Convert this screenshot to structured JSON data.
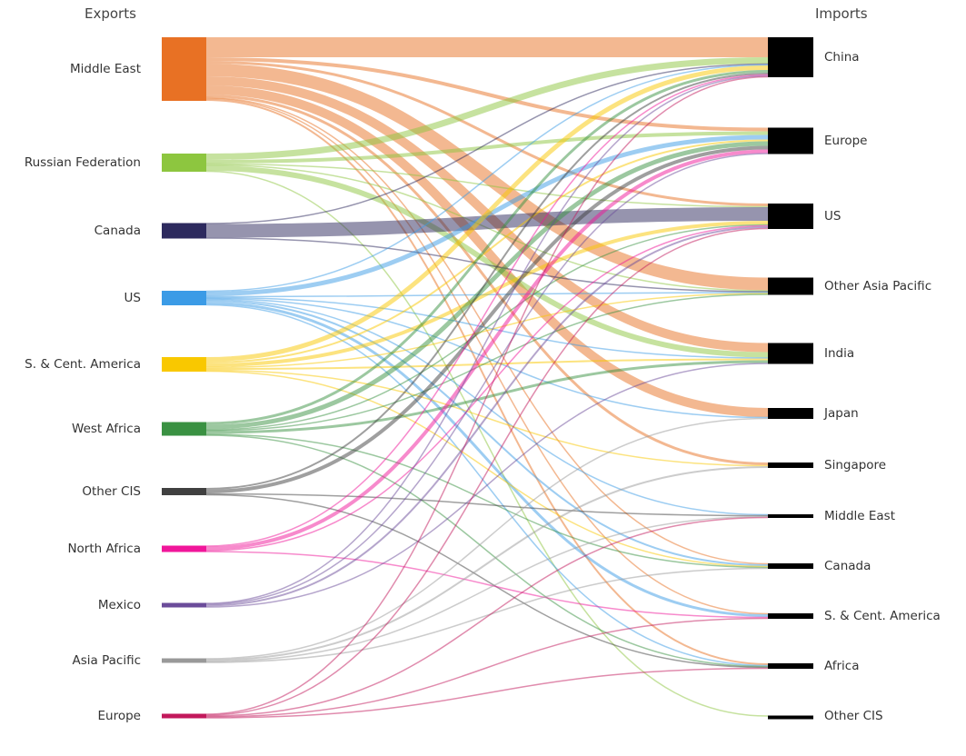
{
  "headers": {
    "left": "Exports",
    "right": "Imports"
  },
  "chart_data": {
    "type": "sankey",
    "sources": [
      {
        "name": "Middle East",
        "color": "#e87124"
      },
      {
        "name": "Russian Federation",
        "color": "#8dc63f"
      },
      {
        "name": "Canada",
        "color": "#2d2a5e"
      },
      {
        "name": "US",
        "color": "#3b9be6"
      },
      {
        "name": "S. & Cent. America",
        "color": "#f9c800"
      },
      {
        "name": "West Africa",
        "color": "#3a9142"
      },
      {
        "name": "Other CIS",
        "color": "#404040"
      },
      {
        "name": "North Africa",
        "color": "#f0169a"
      },
      {
        "name": "Mexico",
        "color": "#6b4c9a"
      },
      {
        "name": "Asia Pacific",
        "color": "#999999"
      },
      {
        "name": "Europe",
        "color": "#c2185b"
      }
    ],
    "targets": [
      {
        "name": "China"
      },
      {
        "name": "Europe"
      },
      {
        "name": "US"
      },
      {
        "name": "Other Asia Pacific"
      },
      {
        "name": "India"
      },
      {
        "name": "Japan"
      },
      {
        "name": "Singapore"
      },
      {
        "name": "Middle East"
      },
      {
        "name": "Canada"
      },
      {
        "name": "S. & Cent. America"
      },
      {
        "name": "Africa"
      },
      {
        "name": "Other CIS"
      }
    ],
    "target_color": "#000000",
    "links": [
      {
        "s": 0,
        "t": 0,
        "v": 22
      },
      {
        "s": 0,
        "t": 1,
        "v": 4
      },
      {
        "s": 0,
        "t": 2,
        "v": 3
      },
      {
        "s": 0,
        "t": 3,
        "v": 14
      },
      {
        "s": 0,
        "t": 4,
        "v": 10
      },
      {
        "s": 0,
        "t": 5,
        "v": 10
      },
      {
        "s": 0,
        "t": 6,
        "v": 3
      },
      {
        "s": 0,
        "t": 9,
        "v": 1
      },
      {
        "s": 0,
        "t": 10,
        "v": 2
      },
      {
        "s": 0,
        "t": 8,
        "v": 1
      },
      {
        "s": 1,
        "t": 0,
        "v": 7
      },
      {
        "s": 1,
        "t": 1,
        "v": 4
      },
      {
        "s": 1,
        "t": 2,
        "v": 1
      },
      {
        "s": 1,
        "t": 3,
        "v": 1
      },
      {
        "s": 1,
        "t": 4,
        "v": 6
      },
      {
        "s": 1,
        "t": 11,
        "v": 1
      },
      {
        "s": 2,
        "t": 0,
        "v": 1
      },
      {
        "s": 2,
        "t": 2,
        "v": 15
      },
      {
        "s": 2,
        "t": 3,
        "v": 1
      },
      {
        "s": 3,
        "t": 0,
        "v": 1
      },
      {
        "s": 3,
        "t": 1,
        "v": 5
      },
      {
        "s": 3,
        "t": 3,
        "v": 1
      },
      {
        "s": 3,
        "t": 4,
        "v": 1
      },
      {
        "s": 3,
        "t": 5,
        "v": 1
      },
      {
        "s": 3,
        "t": 7,
        "v": 1
      },
      {
        "s": 3,
        "t": 8,
        "v": 2
      },
      {
        "s": 3,
        "t": 9,
        "v": 3
      },
      {
        "s": 3,
        "t": 10,
        "v": 1
      },
      {
        "s": 4,
        "t": 0,
        "v": 5
      },
      {
        "s": 4,
        "t": 1,
        "v": 2
      },
      {
        "s": 4,
        "t": 2,
        "v": 4
      },
      {
        "s": 4,
        "t": 3,
        "v": 1
      },
      {
        "s": 4,
        "t": 4,
        "v": 2
      },
      {
        "s": 4,
        "t": 6,
        "v": 1
      },
      {
        "s": 4,
        "t": 8,
        "v": 1
      },
      {
        "s": 5,
        "t": 0,
        "v": 3
      },
      {
        "s": 5,
        "t": 1,
        "v": 5
      },
      {
        "s": 5,
        "t": 2,
        "v": 1
      },
      {
        "s": 5,
        "t": 3,
        "v": 1
      },
      {
        "s": 5,
        "t": 4,
        "v": 3
      },
      {
        "s": 5,
        "t": 8,
        "v": 1
      },
      {
        "s": 5,
        "t": 10,
        "v": 1
      },
      {
        "s": 6,
        "t": 0,
        "v": 2
      },
      {
        "s": 6,
        "t": 1,
        "v": 4
      },
      {
        "s": 6,
        "t": 7,
        "v": 1
      },
      {
        "s": 6,
        "t": 10,
        "v": 1
      },
      {
        "s": 7,
        "t": 0,
        "v": 1
      },
      {
        "s": 7,
        "t": 1,
        "v": 4
      },
      {
        "s": 7,
        "t": 2,
        "v": 1
      },
      {
        "s": 7,
        "t": 9,
        "v": 1
      },
      {
        "s": 8,
        "t": 0,
        "v": 1
      },
      {
        "s": 8,
        "t": 1,
        "v": 1
      },
      {
        "s": 8,
        "t": 2,
        "v": 2
      },
      {
        "s": 8,
        "t": 4,
        "v": 1
      },
      {
        "s": 9,
        "t": 5,
        "v": 1
      },
      {
        "s": 9,
        "t": 6,
        "v": 2
      },
      {
        "s": 9,
        "t": 7,
        "v": 1
      },
      {
        "s": 9,
        "t": 8,
        "v": 1
      },
      {
        "s": 10,
        "t": 0,
        "v": 1
      },
      {
        "s": 10,
        "t": 2,
        "v": 1
      },
      {
        "s": 10,
        "t": 7,
        "v": 1
      },
      {
        "s": 10,
        "t": 9,
        "v": 1
      },
      {
        "s": 10,
        "t": 10,
        "v": 1
      }
    ]
  }
}
